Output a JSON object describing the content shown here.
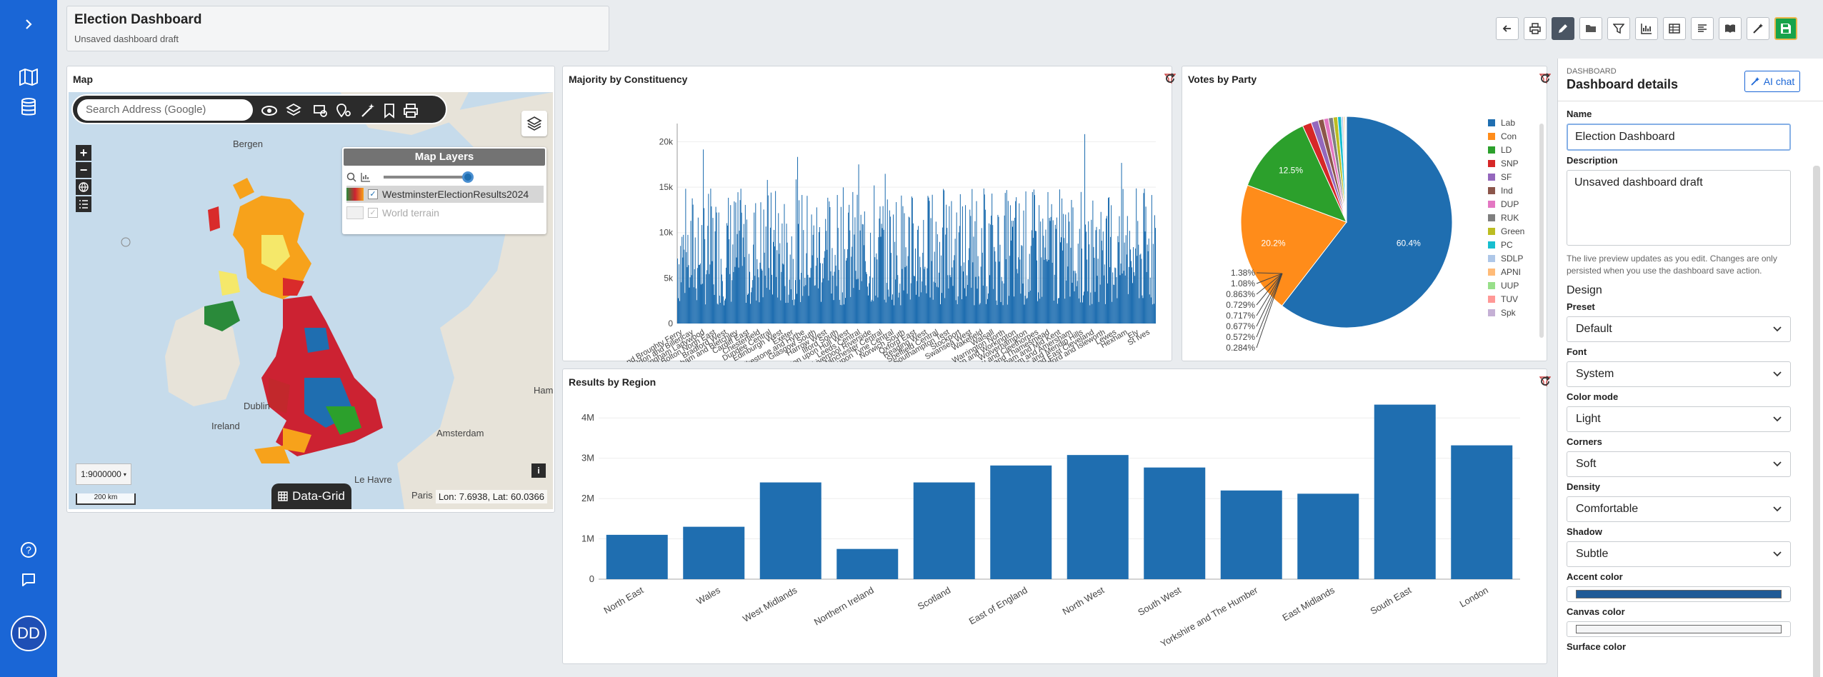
{
  "app": {
    "title": "Election Dashboard",
    "subtitle": "Unsaved dashboard draft",
    "user_initials": "DD",
    "accent": "#1a66d6"
  },
  "toolbar": [
    {
      "icon": "back-icon"
    },
    {
      "icon": "print-icon"
    },
    {
      "icon": "edit-icon",
      "active": true
    },
    {
      "icon": "folder-icon"
    },
    {
      "icon": "filter-icon"
    },
    {
      "icon": "chart-icon"
    },
    {
      "icon": "table-icon"
    },
    {
      "icon": "list-icon"
    },
    {
      "icon": "book-icon"
    },
    {
      "icon": "magic-wand-icon"
    },
    {
      "icon": "save-icon"
    }
  ],
  "map_panel": {
    "title": "Map",
    "search_placeholder": "Search Address (Google)",
    "layers_title": "Map Layers",
    "layers": [
      {
        "name": "WestminsterElectionResults2024",
        "checked": true
      },
      {
        "name": "World terrain",
        "checked": true
      }
    ],
    "scale_select": "1:9000000",
    "scale_bar": "200 km",
    "data_grid_label": "Data-Grid",
    "coords": "Lon: 7.6938, Lat: 60.0366",
    "place_labels": [
      "Bergen",
      "Ireland",
      "Dublin",
      "Amsterdam",
      "Le Havre",
      "Paris",
      "Hamb"
    ]
  },
  "majority_panel": {
    "title": "Majority by Constituency"
  },
  "votes_panel": {
    "title": "Votes by Party"
  },
  "region_panel": {
    "title": "Results by Region"
  },
  "chart_data": [
    {
      "type": "bar",
      "title": "Majority by Constituency",
      "ylim": [
        0,
        22000
      ],
      "yticks": [
        "0",
        "5k",
        "10k",
        "15k",
        "20k"
      ],
      "ytick_values": [
        0,
        5000,
        10000,
        15000,
        20000
      ],
      "color": "#1f6eb0",
      "x_tick_labels": [
        "Arbroath and Broughty Ferry",
        "Basildon and Billericay",
        "Birmingham Ladywood",
        "Bolton North East",
        "Bradford West",
        "Buckingham and Bletchley",
        "Cardiff East",
        "Chesterfield",
        "Dundee Central",
        "Edinburgh West",
        "Exeter",
        "Folkestone and Hythe",
        "Glasgow South",
        "Harrow West",
        "Ilford South",
        "Kingston upon Hull West",
        "Leeds Central",
        "Liverpool Riverside",
        "Manchester Central",
        "Newcastle upon Tyne Central",
        "Norwich South",
        "Oxford East",
        "Reading West",
        "Sheffield Central",
        "Southampton Test",
        "Stockport",
        "Swansea West",
        "Wakefield",
        "Walsall",
        "Warrington North",
        "Whitehaven and Workington",
        "Wolverhampton",
        "Great Grimsby and Cleethorpes",
        "Erith and Thamesmead",
        "Faversham and Mid Kent",
        "Chesham and Amersham",
        "Wells and Mendip Hills",
        "Middlesbrough South and East Cleveland",
        "Brentford and Isleworth",
        "Lewes",
        "Hexham",
        "Ely",
        "St Ives"
      ],
      "bars_count": 650,
      "seed_note": "bar heights vary between roughly 100 and 21000"
    },
    {
      "type": "pie",
      "title": "Votes by Party",
      "categories": [
        "Lab",
        "Con",
        "LD",
        "SNP",
        "SF",
        "Ind",
        "DUP",
        "RUK",
        "Green",
        "PC",
        "SDLP",
        "APNI",
        "UUP",
        "TUV",
        "Spk"
      ],
      "values": [
        60.4,
        20.2,
        12.5,
        1.38,
        1.08,
        0.863,
        0.729,
        0.717,
        0.677,
        0.572,
        0.284,
        0.2,
        0.15,
        0.1,
        0.05
      ],
      "labels_shown": [
        "60.4%",
        "20.2%",
        "12.5%",
        "1.38%",
        "1.08%",
        "0.863%",
        "0.729%",
        "0.717%",
        "0.677%",
        "0.572%",
        "0.284%"
      ],
      "colors": [
        "#1f6eb0",
        "#ff8c1a",
        "#2ca02c",
        "#d62728",
        "#9467bd",
        "#8c564b",
        "#e377c2",
        "#7f7f7f",
        "#bcbd22",
        "#17becf",
        "#aec7e8",
        "#ffbb78",
        "#98df8a",
        "#ff9896",
        "#c5b0d5"
      ],
      "legend": "right"
    },
    {
      "type": "bar",
      "title": "Results by Region",
      "categories": [
        "North East",
        "Wales",
        "West Midlands",
        "Northern Ireland",
        "Scotland",
        "East of England",
        "North West",
        "South West",
        "Yorkshire and The Humber",
        "East Midlands",
        "South East",
        "London"
      ],
      "values": [
        1100000,
        1300000,
        2400000,
        750000,
        2400000,
        2820000,
        3080000,
        2770000,
        2200000,
        2120000,
        4330000,
        3320000
      ],
      "yticks": [
        "0",
        "1M",
        "2M",
        "3M",
        "4M"
      ],
      "ytick_values": [
        0,
        1000000,
        2000000,
        3000000,
        4000000
      ],
      "ylim": [
        0,
        4500000
      ],
      "color": "#1f6eb0"
    }
  ],
  "sidebar": {
    "kicker": "DASHBOARD",
    "title": "Dashboard details",
    "ai_chat": "AI chat",
    "name_label": "Name",
    "name_value": "Election Dashboard",
    "description_label": "Description",
    "description_value": "Unsaved dashboard draft",
    "help": "The live preview updates as you edit. Changes are only persisted when you use the dashboard save action.",
    "design_label": "Design",
    "fields": [
      {
        "label": "Preset",
        "value": "Default"
      },
      {
        "label": "Font",
        "value": "System"
      },
      {
        "label": "Color mode",
        "value": "Light"
      },
      {
        "label": "Corners",
        "value": "Soft"
      },
      {
        "label": "Density",
        "value": "Comfortable"
      },
      {
        "label": "Shadow",
        "value": "Subtle"
      }
    ],
    "accent_label": "Accent color",
    "accent_value": "#1f5a96",
    "canvas_label": "Canvas color",
    "canvas_value": "#f4f5f6",
    "surface_label": "Surface color"
  }
}
